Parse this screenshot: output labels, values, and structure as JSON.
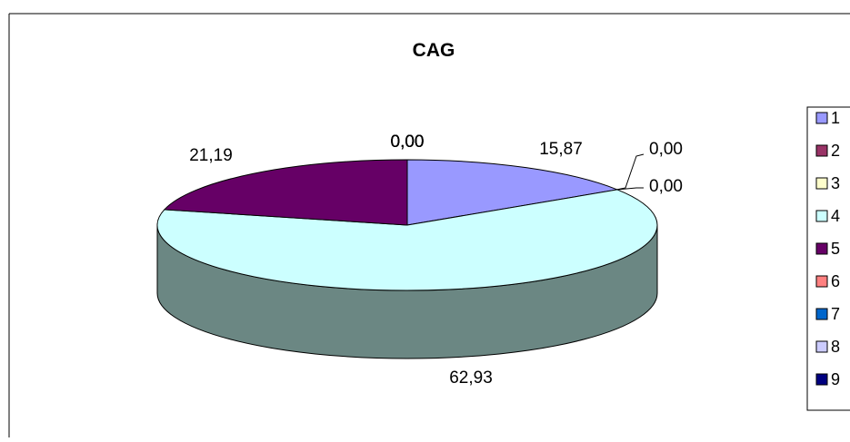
{
  "chart_data": {
    "type": "pie",
    "title": "CAG",
    "three_d": true,
    "legend_position": "right",
    "data_label_format": "comma-decimal-2",
    "slices": [
      {
        "category": "1",
        "value": 15.87,
        "label": "15,87",
        "color": "#9999FF",
        "side_color": "#6B6BB3"
      },
      {
        "category": "2",
        "value": 0.0,
        "label": "0,00",
        "color": "#993366",
        "side_color": "#6B2447"
      },
      {
        "category": "3",
        "value": 0.0,
        "label": "0,00",
        "color": "#FFFFCC",
        "side_color": "#B3B38F"
      },
      {
        "category": "4",
        "value": 62.93,
        "label": "62,93",
        "color": "#CCFFFF",
        "side_color": "#6B8783"
      },
      {
        "category": "5",
        "value": 21.19,
        "label": "21,19",
        "color": "#660066",
        "side_color": "#470047"
      },
      {
        "category": "6",
        "value": 0.0,
        "label": "0,00",
        "color": "#FF8080",
        "side_color": "#B35A5A"
      },
      {
        "category": "7",
        "value": 0.0,
        "label": "0,00",
        "color": "#0066CC",
        "side_color": "#00478F"
      },
      {
        "category": "8",
        "value": 0.0,
        "label": "0,00",
        "color": "#CCCCFF",
        "side_color": "#8F8FB3"
      },
      {
        "category": "9",
        "value": 0.0,
        "label": "0,00",
        "color": "#000080",
        "side_color": "#00005A"
      }
    ]
  }
}
